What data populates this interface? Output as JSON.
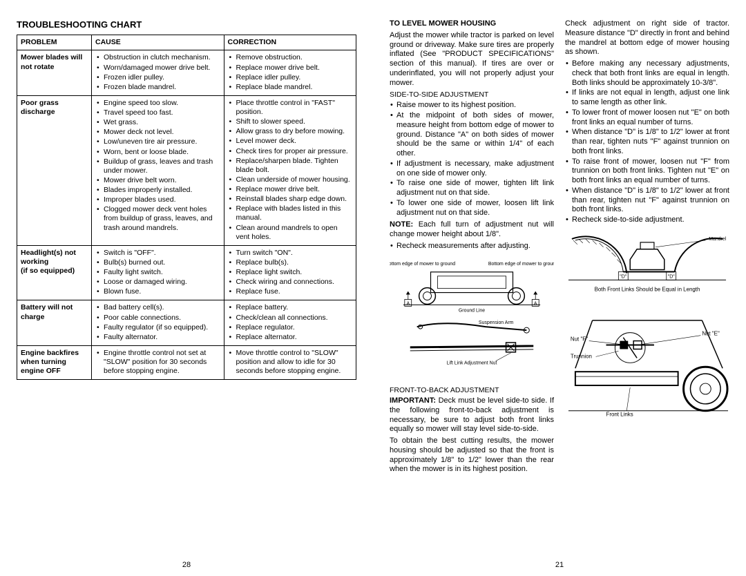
{
  "left": {
    "title": "TROUBLESHOOTING CHART",
    "headers": {
      "problem": "PROBLEM",
      "cause": "CAUSE",
      "correction": "CORRECTION"
    },
    "rows": [
      {
        "problem": "Mower blades will not rotate",
        "causes": [
          "Obstruction in clutch mechanism.",
          "Worn/damaged mower drive belt.",
          "Frozen idler pulley.",
          "Frozen blade mandrel."
        ],
        "corrections": [
          "Remove obstruction.",
          "Replace mower drive belt.",
          "Replace idler pulley.",
          "Replace blade mandrel."
        ]
      },
      {
        "problem": "Poor grass discharge",
        "causes": [
          "Engine speed too slow.",
          "Travel speed too fast.",
          "Wet grass.",
          "Mower deck not level.",
          "Low/uneven tire air pressure.",
          "Worn, bent or loose blade.",
          "Buildup of grass, leaves and trash under mower.",
          "Mower drive belt worn.",
          "Blades improperly installed.",
          "Improper blades used.",
          "Clogged mower deck vent holes from buildup of grass, leaves, and trash around mandrels."
        ],
        "corrections": [
          "Place throttle control in \"FAST\" position.",
          "Shift to slower speed.",
          "Allow grass to dry before mowing.",
          "Level mower deck.",
          "Check tires for proper air pressure.",
          "Replace/sharpen blade. Tighten blade bolt.",
          "Clean underside of mower housing.",
          "Replace mower drive belt.",
          "Reinstall blades sharp edge down.",
          "Replace with blades listed in this manual.",
          "Clean around mandrels to open vent holes."
        ]
      },
      {
        "problem": "Headlight(s) not working\n(if so equipped)",
        "causes": [
          "Switch is \"OFF\".",
          "Bulb(s) burned out.",
          "Faulty light switch.",
          "Loose or damaged wiring.",
          "Blown fuse."
        ],
        "corrections": [
          "Turn switch \"ON\".",
          "Replace bulb(s).",
          "Replace light switch.",
          "Check wiring and connections.",
          "Replace fuse."
        ]
      },
      {
        "problem": "Battery will not charge",
        "causes": [
          "Bad battery cell(s).",
          "Poor cable connections.",
          "Faulty regulator (if so equipped).",
          "Faulty alternator."
        ],
        "corrections": [
          "Replace battery.",
          "Check/clean all connections.",
          "Replace regulator.",
          "Replace alternator."
        ]
      },
      {
        "problem": "Engine backfires when turning engine OFF",
        "causes": [
          "Engine throttle control not set at \"SLOW\" position for 30 seconds before stopping engine."
        ],
        "corrections": [
          "Move throttle control to \"SLOW\" position and allow to idle for 30 seconds before stopping engine."
        ]
      }
    ],
    "pageNum": "28"
  },
  "right": {
    "title": "TO LEVEL MOWER HOUSING",
    "intro": "Adjust the mower while tractor is parked on level ground or driveway. Make sure tires are properly inflated (See \"PRODUCT SPECIFICATIONS\" section of this manual). If tires are over or underinflated, you will not properly adjust your mower.",
    "side_heading": "SIDE-TO-SIDE ADJUSTMENT",
    "side_bullets": [
      "Raise mower to its highest position.",
      "At the midpoint of both sides of mower, measure height from bottom edge of mower to ground. Distance \"A\" on both sides of mower should be the same or within 1/4\" of each other.",
      "If adjustment is necessary, make adjustment on one side of mower only.",
      "To raise one side of mower, tighten lift link adjustment nut on that side.",
      "To lower one side of mower, loosen lift link adjustment nut on that side."
    ],
    "note_label": "NOTE:",
    "note_text": "Each full turn of adjustment nut will change mower height about 1/8\".",
    "side_bullets2": [
      "Recheck measurements after adjusting."
    ],
    "diag1": {
      "left_label": "Bottom edge of mower to ground",
      "right_label": "Bottom edge of mower to ground",
      "ground": "Ground Line",
      "a": "A",
      "susp": "Suspension Arm",
      "lift": "Lift Link Adjustment Nut"
    },
    "front_heading": "FRONT-TO-BACK ADJUSTMENT",
    "important_label": "IMPORTANT:",
    "important_text": "Deck must be level side-to side. If the following front-to-back adjustment is necessary, be sure to adjust both front links equally so mower will stay level side-to-side.",
    "front_text": "To obtain the best cutting results, the mower housing should be adjusted so that the front is approximately 1/8\" to 1/2\" lower than the rear when the mower is in its highest position.",
    "col2_text1": "Check adjustment on right side of tractor. Measure distance \"D\" directly in front and behind the mandrel at bottom edge of mower housing as shown.",
    "col2_bullets": [
      "Before making any necessary adjustments, check that both front links are equal in length. Both links should be approximately 10-3/8\".",
      "If links are not equal in length, adjust one link to same length as other link.",
      "To lower front of mower loosen nut \"E\" on both front links an equal number of turns.",
      "When distance \"D\" is 1/8\" to 1/2\" lower at front than rear, tighten nuts \"F\" against trunnion on both front links.",
      "To raise front of mower, loosen nut \"F\" from trunnion on both front links. Tighten nut \"E\" on both front links an equal number of turns.",
      "When distance \"D\" is 1/8\" to 1/2\" lower at front than rear, tighten nut \"F\" against trunnion on both front links.",
      "Recheck side-to-side adjustment."
    ],
    "diag2": {
      "mandrel": "Mandrel",
      "d": "\"D\"",
      "caption": "Both Front Links Should be Equal in Length",
      "nutF": "Nut \"F\"",
      "nutE": "Nut \"E\"",
      "trunnion": "Trunnion",
      "frontLinks": "Front Links"
    },
    "pageNum": "21"
  }
}
